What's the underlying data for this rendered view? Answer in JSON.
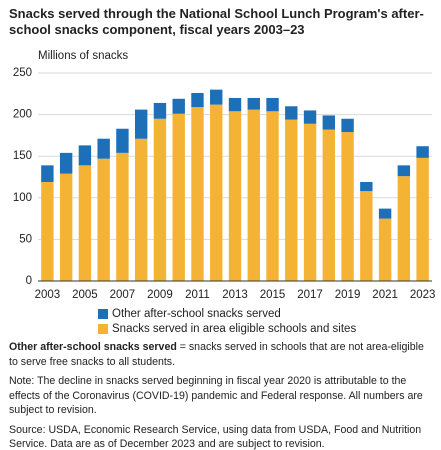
{
  "chart_data": {
    "type": "stacked_bar",
    "title": "Snacks served through the National School Lunch Program's after-school snacks component, fiscal years 2003–23",
    "y_label": "Millions of snacks",
    "categories": [
      "2003",
      null,
      "2005",
      null,
      "2007",
      null,
      "2009",
      null,
      "2011",
      null,
      "2013",
      null,
      "2015",
      null,
      "2017",
      null,
      "2019",
      null,
      "2021",
      null,
      "2023"
    ],
    "series": [
      {
        "name": "Snacks served in area eligible schools and sites",
        "color": "#f5b335",
        "values": [
          119,
          129,
          139,
          147,
          154,
          171,
          195,
          201,
          209,
          212,
          204,
          206,
          204,
          194,
          189,
          182,
          179,
          108,
          75,
          126,
          148
        ]
      },
      {
        "name": "Other after-school snacks served",
        "color": "#1d6fb8",
        "values": [
          20,
          25,
          24,
          24,
          29,
          35,
          19,
          18,
          17,
          18,
          16,
          14,
          16,
          16,
          16,
          17,
          16,
          11,
          12,
          13,
          14
        ]
      }
    ],
    "legend_order": [
      1,
      0
    ],
    "ylim": [
      0,
      250
    ],
    "yticks": [
      0,
      50,
      100,
      150,
      200,
      250
    ],
    "grid": true
  },
  "notes": {
    "definition_term": "Other after-school snacks served",
    "definition_text": " = snacks served in schools that are not area-eligible to serve free snacks to all students.",
    "note": "Note: The decline in snacks served beginning in fiscal year 2020 is attributable to the effects of the Coronavirus (COVID-19) pandemic and Federal response. All numbers are subject to revision.",
    "source": "Source: USDA, Economic Research Service, using data from USDA, Food and Nutrition Service. Data are as of December 2023 and are subject to revision."
  }
}
